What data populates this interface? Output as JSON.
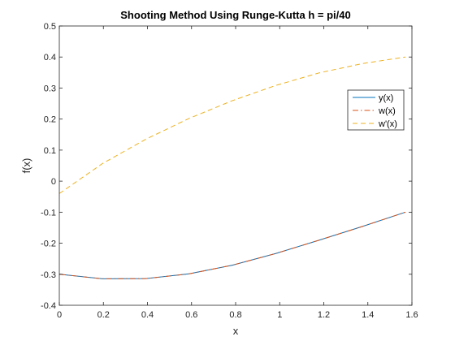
{
  "chart_data": {
    "type": "line",
    "title": "Shooting Method Using Runge-Kutta h = pi/40",
    "xlabel": "x",
    "ylabel": "f(x)",
    "xlim": [
      0,
      1.6
    ],
    "ylim": [
      -0.4,
      0.5
    ],
    "xticks": [
      "0",
      "0.2",
      "0.4",
      "0.6",
      "0.8",
      "1",
      "1.2",
      "1.4",
      "1.6"
    ],
    "yticks": [
      "-0.4",
      "-0.3",
      "-0.2",
      "-0.1",
      "0",
      "0.1",
      "0.2",
      "0.3",
      "0.4",
      "0.5"
    ],
    "grid": false,
    "legend_position": "top-right",
    "x": [
      0,
      0.1963,
      0.3927,
      0.589,
      0.7854,
      0.9817,
      1.1781,
      1.3744,
      1.5708
    ],
    "series": [
      {
        "name": "y(x)",
        "color": "#0072BD",
        "dash": "solid",
        "values": [
          -0.3,
          -0.3148,
          -0.3141,
          -0.2987,
          -0.2707,
          -0.2333,
          -0.1904,
          -0.1462,
          -0.1
        ]
      },
      {
        "name": "w(x)",
        "color": "#D95319",
        "dash": "dashdot",
        "values": [
          -0.3,
          -0.3148,
          -0.3141,
          -0.2987,
          -0.2707,
          -0.2333,
          -0.1904,
          -0.1462,
          -0.1
        ]
      },
      {
        "name": "w'(x)",
        "color": "#EDB120",
        "dash": "dashed",
        "values": [
          -0.04,
          0.0569,
          0.1351,
          0.2022,
          0.2594,
          0.3083,
          0.3487,
          0.3787,
          0.4
        ]
      }
    ]
  }
}
